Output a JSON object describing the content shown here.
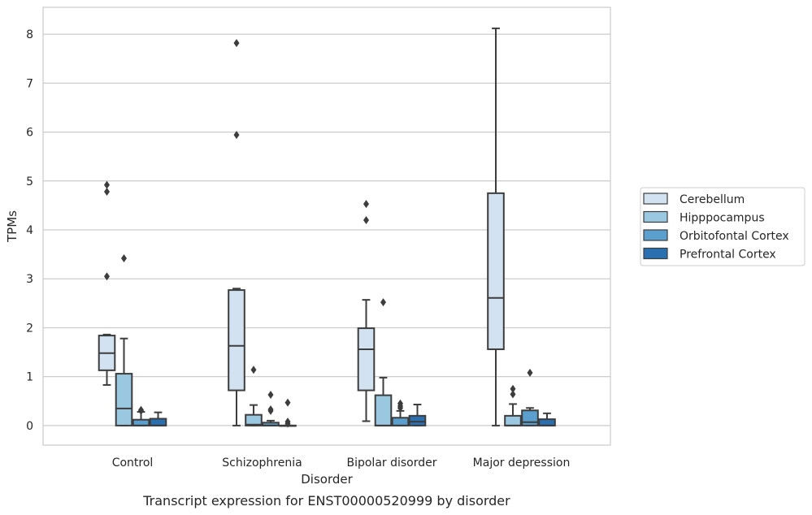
{
  "chart_data": {
    "type": "boxplot",
    "title": "",
    "caption": "Transcript expression for ENST00000520999 by disorder",
    "xlabel": "Disorder",
    "ylabel": "TPMs",
    "categories": [
      "Control",
      "Schizophrenia",
      "Bipolar disorder",
      "Major depression"
    ],
    "ylim": [
      -0.4,
      8.55
    ],
    "yticks": [
      0,
      1,
      2,
      3,
      4,
      5,
      6,
      7,
      8
    ],
    "grid": true,
    "legend_position": "right",
    "series": [
      {
        "name": "Cerebellum",
        "color": "#d2e2f1",
        "boxes": [
          {
            "whisker_low": 0.83,
            "q1": 1.13,
            "median": 1.48,
            "q3": 1.84,
            "whisker_high": 1.86,
            "outliers": [
              4.92,
              4.78,
              3.05
            ]
          },
          {
            "whisker_low": 0.0,
            "q1": 0.72,
            "median": 1.63,
            "q3": 2.77,
            "whisker_high": 2.8,
            "outliers": [
              7.82,
              5.94
            ]
          },
          {
            "whisker_low": 0.09,
            "q1": 0.72,
            "median": 1.56,
            "q3": 1.99,
            "whisker_high": 2.57,
            "outliers": [
              4.53,
              4.2
            ]
          },
          {
            "whisker_low": 0.0,
            "q1": 1.56,
            "median": 2.61,
            "q3": 4.75,
            "whisker_high": 8.12,
            "outliers": []
          }
        ]
      },
      {
        "name": "Hipppocampus",
        "color": "#9ac8e0",
        "boxes": [
          {
            "whisker_low": 0.0,
            "q1": 0.0,
            "median": 0.35,
            "q3": 1.06,
            "whisker_high": 1.78,
            "outliers": [
              3.42
            ]
          },
          {
            "whisker_low": 0.0,
            "q1": 0.0,
            "median": 0.02,
            "q3": 0.22,
            "whisker_high": 0.42,
            "outliers": [
              1.14
            ]
          },
          {
            "whisker_low": 0.0,
            "q1": 0.0,
            "median": 0.0,
            "q3": 0.62,
            "whisker_high": 0.98,
            "outliers": [
              2.52
            ]
          },
          {
            "whisker_low": 0.0,
            "q1": 0.0,
            "median": 0.0,
            "q3": 0.2,
            "whisker_high": 0.44,
            "outliers": [
              0.75,
              0.64
            ]
          }
        ]
      },
      {
        "name": "Orbitofontal Cortex",
        "color": "#5a9fcd",
        "boxes": [
          {
            "whisker_low": 0.0,
            "q1": 0.0,
            "median": 0.0,
            "q3": 0.12,
            "whisker_high": 0.28,
            "outliers": [
              0.32,
              0.3
            ]
          },
          {
            "whisker_low": 0.0,
            "q1": 0.0,
            "median": 0.0,
            "q3": 0.06,
            "whisker_high": 0.1,
            "outliers": [
              0.63,
              0.33,
              0.3
            ]
          },
          {
            "whisker_low": 0.0,
            "q1": 0.0,
            "median": 0.0,
            "q3": 0.16,
            "whisker_high": 0.3,
            "outliers": [
              0.45,
              0.4,
              0.36
            ]
          },
          {
            "whisker_low": 0.0,
            "q1": 0.0,
            "median": 0.07,
            "q3": 0.31,
            "whisker_high": 0.36,
            "outliers": [
              1.08
            ]
          }
        ]
      },
      {
        "name": "Prefrontal Cortex",
        "color": "#2a6fb0",
        "boxes": [
          {
            "whisker_low": 0.0,
            "q1": 0.0,
            "median": 0.0,
            "q3": 0.14,
            "whisker_high": 0.27,
            "outliers": []
          },
          {
            "whisker_low": 0.0,
            "q1": 0.0,
            "median": 0.0,
            "q3": 0.0,
            "whisker_high": 0.0,
            "outliers": [
              0.47,
              0.08,
              0.04
            ]
          },
          {
            "whisker_low": 0.0,
            "q1": 0.0,
            "median": 0.08,
            "q3": 0.2,
            "whisker_high": 0.43,
            "outliers": []
          },
          {
            "whisker_low": 0.0,
            "q1": 0.0,
            "median": 0.0,
            "q3": 0.13,
            "whisker_high": 0.25,
            "outliers": []
          }
        ]
      }
    ]
  }
}
